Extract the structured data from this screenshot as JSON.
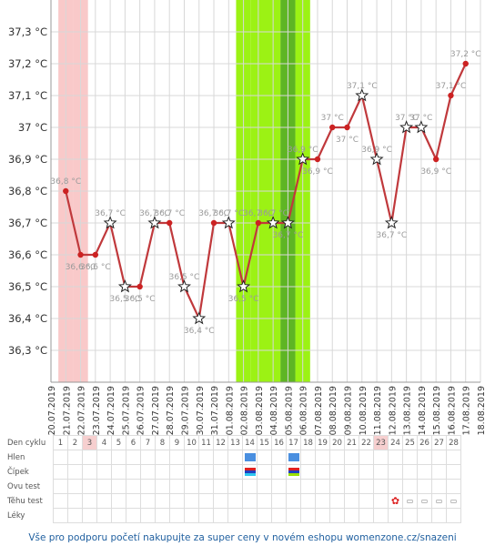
{
  "colors": {
    "line": "#c0393c",
    "point": "#cc2222",
    "period": "#f9c9c9",
    "fertile": "#9cf214",
    "fertile_peak": "#5eb524",
    "grid": "#d8d8d8",
    "label": "#9a9a9a"
  },
  "chart_data": {
    "type": "line",
    "ylim": [
      36.2,
      37.4
    ],
    "yticks": [
      "36,3 °C",
      "36,4 °C",
      "36,5 °C",
      "36,6 °C",
      "36,7 °C",
      "36,8 °C",
      "36,9 °C",
      "37 °C",
      "37,1 °C",
      "37,2 °C",
      "37,3 °C"
    ],
    "xticks": [
      "20.07.2019",
      "21.07.2019",
      "22.07.2019",
      "23.07.2019",
      "24.07.2019",
      "25.07.2019",
      "26.07.2019",
      "27.07.2019",
      "28.07.2019",
      "29.07.2019",
      "30.07.2019",
      "31.07.2019",
      "01.08.2019",
      "02.08.2019",
      "03.08.2019",
      "04.08.2019",
      "05.08.2019",
      "06.08.2019",
      "07.08.2019",
      "08.08.2019",
      "09.08.2019",
      "10.08.2019",
      "11.08.2019",
      "12.08.2019",
      "13.08.2019",
      "14.08.2019",
      "15.08.2019",
      "16.08.2019",
      "17.08.2019",
      "18.08.2019"
    ],
    "period_days": [
      1,
      2
    ],
    "fertile_days": [
      13,
      17
    ],
    "fertile_peak_days": [
      16,
      16
    ],
    "series": [
      {
        "values": [
          36.8,
          36.6,
          36.6,
          36.7,
          36.5,
          36.5,
          36.7,
          36.7,
          36.5,
          36.4,
          36.7,
          36.7,
          36.5,
          36.7,
          36.7,
          36.7,
          36.9,
          36.9,
          37.0,
          37.0,
          37.1,
          36.9,
          36.7,
          37.0,
          37.0,
          36.9,
          37.1,
          37.2
        ],
        "markers": [
          "dot",
          "dot",
          "dot",
          "star",
          "star",
          "dot",
          "star",
          "dot",
          "star",
          "star",
          "dot",
          "star",
          "star",
          "dot",
          "star",
          "star",
          "star",
          "dot",
          "dot",
          "dot",
          "star",
          "star",
          "star",
          "star",
          "star",
          "dot",
          "dot",
          "dot"
        ],
        "labels": [
          "36,8 °C",
          "36,6 °C",
          "36,6 °C",
          "36,7 °C",
          "36,5 °C",
          "36,5 °C",
          "36,7 °C",
          "36,7 °C",
          "36,5 °C",
          "36,4 °C",
          "36,7 °C",
          "36,7 °C",
          "36,5 °C",
          "36,7 °C",
          "36,7 °C",
          "36,7 °C",
          "36,9 °C",
          "36,9 °C",
          "37 °C",
          "37 °C",
          "37,1 °C",
          "36,9 °C",
          "36,7 °C",
          "37 °C",
          "37 °C",
          "36,9 °C",
          "37,1 °C",
          "37,2 °C"
        ]
      }
    ]
  },
  "table": {
    "rows": [
      "Den cyklu",
      "Hlen",
      "Čípek",
      "Ovu test",
      "Těhu test",
      "Léky"
    ],
    "days": [
      "1",
      "2",
      "3",
      "4",
      "5",
      "6",
      "7",
      "8",
      "9",
      "10",
      "11",
      "12",
      "13",
      "14",
      "15",
      "16",
      "17",
      "18",
      "19",
      "20",
      "21",
      "22",
      "23",
      "24",
      "25",
      "26",
      "27",
      "28"
    ],
    "highlight_days": [
      3,
      23
    ],
    "hlen_days": [
      14,
      17
    ],
    "cipek_days": [
      14,
      17
    ],
    "tehu_positive_day": 24,
    "tehu_negative_days": [
      25,
      26,
      27,
      28
    ]
  },
  "footer": "Vše pro podporu početí nakupujte za super ceny v novém eshopu womenzone.cz/snazeni"
}
